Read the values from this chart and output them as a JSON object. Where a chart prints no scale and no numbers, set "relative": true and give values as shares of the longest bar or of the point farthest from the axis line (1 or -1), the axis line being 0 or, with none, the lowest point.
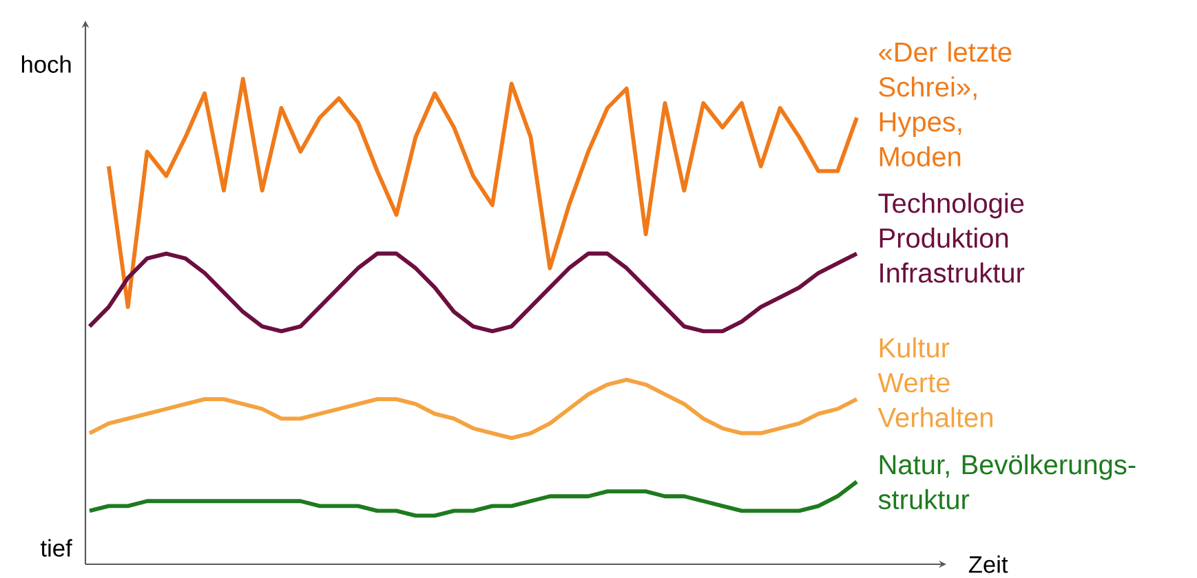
{
  "chart_data": {
    "type": "line",
    "relative": true,
    "xlabel": "Zeit",
    "annotations": [
      "hoch",
      "tief"
    ],
    "categories": [
      null,
      null,
      null,
      null,
      null,
      null,
      null,
      null,
      null,
      null,
      null,
      null,
      null,
      null,
      null,
      null,
      null,
      null,
      null,
      null,
      null,
      null,
      null,
      null,
      null,
      null,
      null,
      null,
      null,
      null,
      null,
      null,
      null,
      null,
      null,
      null,
      null,
      null,
      null,
      null,
      null
    ],
    "series": [
      {
        "name": "«Der letzte Schrei», Hypes, Moden",
        "color": "#f07a1a",
        "values": [
          null,
          0.82,
          0.53,
          0.85,
          0.8,
          0.88,
          0.97,
          0.77,
          1.0,
          0.77,
          0.94,
          0.85,
          0.92,
          0.96,
          0.91,
          0.81,
          0.72,
          0.88,
          0.97,
          0.9,
          0.8,
          0.74,
          0.99,
          0.88,
          0.61,
          0.74,
          0.85,
          0.94,
          0.98,
          0.68,
          0.95,
          0.77,
          0.95,
          0.9,
          0.95,
          0.82,
          0.94,
          0.88,
          0.81,
          0.81,
          0.92
        ]
      },
      {
        "name": "Technologie Produktion Infrastruktur",
        "color": "#6b0f3f",
        "values": [
          0.49,
          0.53,
          0.59,
          0.63,
          0.64,
          0.63,
          0.6,
          0.56,
          0.52,
          0.49,
          0.48,
          0.49,
          0.53,
          0.57,
          0.61,
          0.64,
          0.64,
          0.61,
          0.57,
          0.52,
          0.49,
          0.48,
          0.49,
          0.53,
          0.57,
          0.61,
          0.64,
          0.64,
          0.61,
          0.57,
          0.53,
          0.49,
          0.48,
          0.48,
          0.5,
          0.53,
          0.55,
          0.57,
          0.6,
          0.62,
          0.64
        ]
      },
      {
        "name": "Kultur Werte Verhalten",
        "color": "#f4a340",
        "values": [
          0.27,
          0.29,
          0.3,
          0.31,
          0.32,
          0.33,
          0.34,
          0.34,
          0.33,
          0.32,
          0.3,
          0.3,
          0.31,
          0.32,
          0.33,
          0.34,
          0.34,
          0.33,
          0.31,
          0.3,
          0.28,
          0.27,
          0.26,
          0.27,
          0.29,
          0.32,
          0.35,
          0.37,
          0.38,
          0.37,
          0.35,
          0.33,
          0.3,
          0.28,
          0.27,
          0.27,
          0.28,
          0.29,
          0.31,
          0.32,
          0.34
        ]
      },
      {
        "name": "Natur, Bevölkerungs-struktur",
        "color": "#1e7b1e",
        "values": [
          0.11,
          0.12,
          0.12,
          0.13,
          0.13,
          0.13,
          0.13,
          0.13,
          0.13,
          0.13,
          0.13,
          0.13,
          0.12,
          0.12,
          0.12,
          0.11,
          0.11,
          0.1,
          0.1,
          0.11,
          0.11,
          0.12,
          0.12,
          0.13,
          0.14,
          0.14,
          0.14,
          0.15,
          0.15,
          0.15,
          0.14,
          0.14,
          0.13,
          0.12,
          0.11,
          0.11,
          0.11,
          0.11,
          0.12,
          0.14,
          0.17
        ]
      }
    ]
  }
}
